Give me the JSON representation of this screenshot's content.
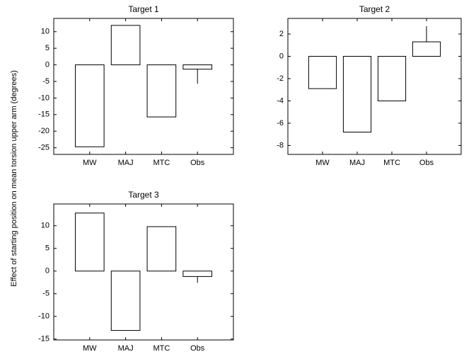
{
  "chart_data": [
    {
      "type": "bar",
      "title": "Target 1",
      "ylabel": "Effect of starting position on mean torsion upper arm (degrees)",
      "categories": [
        "MW",
        "MAJ",
        "MTC",
        "Obs"
      ],
      "values": [
        -24.7,
        11.9,
        -15.7,
        -1.3
      ],
      "errors": [
        null,
        null,
        null,
        4.4
      ],
      "color": "#ffffff",
      "ylim": [
        -27,
        14
      ],
      "yticks": [
        -25,
        -20,
        -15,
        -10,
        -5,
        0,
        5,
        10
      ]
    },
    {
      "type": "bar",
      "title": "Target 2",
      "categories": [
        "MW",
        "MAJ",
        "MTC",
        "Obs"
      ],
      "values": [
        -2.9,
        -6.8,
        -4.0,
        1.3
      ],
      "errors": [
        null,
        null,
        null,
        1.4
      ],
      "color": "#ffffff",
      "ylim": [
        -8.8,
        3.4
      ],
      "yticks": [
        -8,
        -6,
        -4,
        -2,
        0,
        2
      ]
    },
    {
      "type": "bar",
      "title": "Target 3",
      "categories": [
        "MW",
        "MAJ",
        "MTC",
        "Obs"
      ],
      "values": [
        12.8,
        -13.1,
        9.8,
        -1.2
      ],
      "errors": [
        null,
        null,
        null,
        1.4
      ],
      "color": "#ffffff",
      "ylim": [
        -15.2,
        14.8
      ],
      "yticks": [
        -15,
        -10,
        -5,
        0,
        5,
        10
      ]
    }
  ]
}
